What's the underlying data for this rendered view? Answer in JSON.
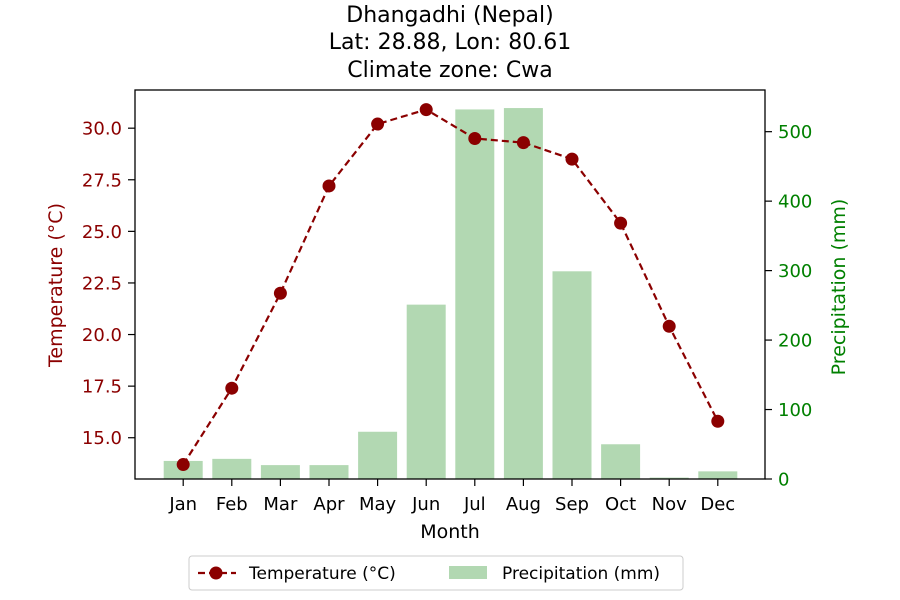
{
  "chart_data": {
    "type": "bar+line",
    "title_lines": [
      "Dhangadhi (Nepal)",
      "Lat: 28.88, Lon: 80.61",
      "Climate zone: Cwa"
    ],
    "categories": [
      "Jan",
      "Feb",
      "Mar",
      "Apr",
      "May",
      "Jun",
      "Jul",
      "Aug",
      "Sep",
      "Oct",
      "Nov",
      "Dec"
    ],
    "xlabel": "Month",
    "left_axis": {
      "label": "Temperature (°C)",
      "min": 13.0,
      "max": 31.85,
      "ticks": [
        15.0,
        17.5,
        20.0,
        22.5,
        25.0,
        27.5,
        30.0
      ],
      "tick_labels": [
        "15.0",
        "17.5",
        "20.0",
        "22.5",
        "25.0",
        "27.5",
        "30.0"
      ],
      "color": "#8b0000"
    },
    "right_axis": {
      "label": "Precipitation (mm)",
      "min": 0,
      "max": 560,
      "ticks": [
        0,
        100,
        200,
        300,
        400,
        500
      ],
      "tick_labels": [
        "0",
        "100",
        "200",
        "300",
        "400",
        "500"
      ],
      "color": "#008000"
    },
    "series": [
      {
        "name": "Temperature (°C)",
        "kind": "line",
        "axis": "left",
        "color": "#8b0000",
        "values": [
          13.7,
          17.4,
          22.0,
          27.2,
          30.2,
          30.9,
          29.5,
          29.3,
          28.5,
          25.4,
          20.4,
          15.8
        ]
      },
      {
        "name": "Precipitation (mm)",
        "kind": "bar",
        "axis": "right",
        "color": "#b2d8b2",
        "values": [
          26,
          29,
          20,
          20,
          68,
          251,
          532,
          534,
          299,
          50,
          2,
          11
        ]
      }
    ],
    "legend": {
      "position": "bottom-center",
      "entries": [
        "Temperature (°C)",
        "Precipitation (mm)"
      ]
    },
    "grid": false
  }
}
